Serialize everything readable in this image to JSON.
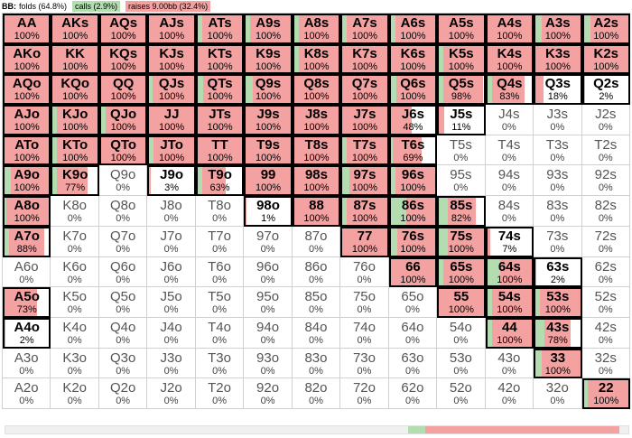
{
  "colors": {
    "fold": "#ffffff",
    "call": "#b3dcb0",
    "raise": "#f4a1a1"
  },
  "header": {
    "title": "BB:",
    "folds_label": "folds (64.8%)",
    "calls_label": "calls (2.9%)",
    "raises_label": "raises 9.00bb (32.4%)"
  },
  "summary": {
    "fold": 0.648,
    "call": 0.029,
    "raise": 0.324
  },
  "grid": [
    [
      {
        "hand": "AA",
        "pct": "100%",
        "call": 0,
        "raise": 1
      },
      {
        "hand": "AKs",
        "pct": "100%",
        "call": 0,
        "raise": 1
      },
      {
        "hand": "AQs",
        "pct": "100%",
        "call": 0,
        "raise": 1
      },
      {
        "hand": "AJs",
        "pct": "100%",
        "call": 0,
        "raise": 1
      },
      {
        "hand": "ATs",
        "pct": "100%",
        "call": 0.1,
        "raise": 0.9
      },
      {
        "hand": "A9s",
        "pct": "100%",
        "call": 0.1,
        "raise": 0.9
      },
      {
        "hand": "A8s",
        "pct": "100%",
        "call": 0.1,
        "raise": 0.9
      },
      {
        "hand": "A7s",
        "pct": "100%",
        "call": 0.1,
        "raise": 0.9
      },
      {
        "hand": "A6s",
        "pct": "100%",
        "call": 0.1,
        "raise": 0.9
      },
      {
        "hand": "A5s",
        "pct": "100%",
        "call": 0,
        "raise": 1
      },
      {
        "hand": "A4s",
        "pct": "100%",
        "call": 0,
        "raise": 1
      },
      {
        "hand": "A3s",
        "pct": "100%",
        "call": 0.15,
        "raise": 0.85
      },
      {
        "hand": "A2s",
        "pct": "100%",
        "call": 0.15,
        "raise": 0.85
      }
    ],
    [
      {
        "hand": "AKo",
        "pct": "100%",
        "call": 0,
        "raise": 1
      },
      {
        "hand": "KK",
        "pct": "100%",
        "call": 0,
        "raise": 1
      },
      {
        "hand": "KQs",
        "pct": "100%",
        "call": 0,
        "raise": 1
      },
      {
        "hand": "KJs",
        "pct": "100%",
        "call": 0,
        "raise": 1
      },
      {
        "hand": "KTs",
        "pct": "100%",
        "call": 0,
        "raise": 1
      },
      {
        "hand": "K9s",
        "pct": "100%",
        "call": 0,
        "raise": 1
      },
      {
        "hand": "K8s",
        "pct": "100%",
        "call": 0.1,
        "raise": 0.9
      },
      {
        "hand": "K7s",
        "pct": "100%",
        "call": 0,
        "raise": 1
      },
      {
        "hand": "K6s",
        "pct": "100%",
        "call": 0,
        "raise": 1
      },
      {
        "hand": "K5s",
        "pct": "100%",
        "call": 0.1,
        "raise": 0.9
      },
      {
        "hand": "K4s",
        "pct": "100%",
        "call": 0,
        "raise": 1
      },
      {
        "hand": "K3s",
        "pct": "100%",
        "call": 0,
        "raise": 1
      },
      {
        "hand": "K2s",
        "pct": "100%",
        "call": 0,
        "raise": 1
      }
    ],
    [
      {
        "hand": "AQo",
        "pct": "100%",
        "call": 0,
        "raise": 1
      },
      {
        "hand": "KQo",
        "pct": "100%",
        "call": 0,
        "raise": 1
      },
      {
        "hand": "QQ",
        "pct": "100%",
        "call": 0,
        "raise": 1
      },
      {
        "hand": "QJs",
        "pct": "100%",
        "call": 0.08,
        "raise": 0.92
      },
      {
        "hand": "QTs",
        "pct": "100%",
        "call": 0.12,
        "raise": 0.88
      },
      {
        "hand": "Q9s",
        "pct": "100%",
        "call": 0.15,
        "raise": 0.85
      },
      {
        "hand": "Q8s",
        "pct": "100%",
        "call": 0,
        "raise": 1
      },
      {
        "hand": "Q7s",
        "pct": "100%",
        "call": 0,
        "raise": 1
      },
      {
        "hand": "Q6s",
        "pct": "100%",
        "call": 0.12,
        "raise": 0.88
      },
      {
        "hand": "Q5s",
        "pct": "98%",
        "call": 0.1,
        "raise": 0.88
      },
      {
        "hand": "Q4s",
        "pct": "83%",
        "call": 0.1,
        "raise": 0.73
      },
      {
        "hand": "Q3s",
        "pct": "18%",
        "call": 0,
        "raise": 0.18
      },
      {
        "hand": "Q2s",
        "pct": "2%",
        "call": 0,
        "raise": 0.02
      }
    ],
    [
      {
        "hand": "AJo",
        "pct": "100%",
        "call": 0,
        "raise": 1
      },
      {
        "hand": "KJo",
        "pct": "100%",
        "call": 0.1,
        "raise": 0.9
      },
      {
        "hand": "QJo",
        "pct": "100%",
        "call": 0.1,
        "raise": 0.9
      },
      {
        "hand": "JJ",
        "pct": "100%",
        "call": 0,
        "raise": 1
      },
      {
        "hand": "JTs",
        "pct": "100%",
        "call": 0,
        "raise": 1
      },
      {
        "hand": "J9s",
        "pct": "100%",
        "call": 0,
        "raise": 1
      },
      {
        "hand": "J8s",
        "pct": "100%",
        "call": 0,
        "raise": 1
      },
      {
        "hand": "J7s",
        "pct": "100%",
        "call": 0,
        "raise": 1
      },
      {
        "hand": "J6s",
        "pct": "48%",
        "call": 0,
        "raise": 0.48
      },
      {
        "hand": "J5s",
        "pct": "11%",
        "call": 0,
        "raise": 0.11
      },
      {
        "hand": "J4s",
        "pct": "0%",
        "call": 0,
        "raise": 0
      },
      {
        "hand": "J3s",
        "pct": "0%",
        "call": 0,
        "raise": 0
      },
      {
        "hand": "J2s",
        "pct": "0%",
        "call": 0,
        "raise": 0
      }
    ],
    [
      {
        "hand": "ATo",
        "pct": "100%",
        "call": 0,
        "raise": 1
      },
      {
        "hand": "KTo",
        "pct": "100%",
        "call": 0.1,
        "raise": 0.9
      },
      {
        "hand": "QTo",
        "pct": "100%",
        "call": 0,
        "raise": 1
      },
      {
        "hand": "JTo",
        "pct": "100%",
        "call": 0.1,
        "raise": 0.9
      },
      {
        "hand": "TT",
        "pct": "100%",
        "call": 0,
        "raise": 1
      },
      {
        "hand": "T9s",
        "pct": "100%",
        "call": 0,
        "raise": 1
      },
      {
        "hand": "T8s",
        "pct": "100%",
        "call": 0,
        "raise": 1
      },
      {
        "hand": "T7s",
        "pct": "100%",
        "call": 0.1,
        "raise": 0.9
      },
      {
        "hand": "T6s",
        "pct": "69%",
        "call": 0.05,
        "raise": 0.64
      },
      {
        "hand": "T5s",
        "pct": "0%",
        "call": 0,
        "raise": 0
      },
      {
        "hand": "T4s",
        "pct": "0%",
        "call": 0,
        "raise": 0
      },
      {
        "hand": "T3s",
        "pct": "0%",
        "call": 0,
        "raise": 0
      },
      {
        "hand": "T2s",
        "pct": "0%",
        "call": 0,
        "raise": 0
      }
    ],
    [
      {
        "hand": "A9o",
        "pct": "100%",
        "call": 0.15,
        "raise": 0.85
      },
      {
        "hand": "K9o",
        "pct": "77%",
        "call": 0.1,
        "raise": 0.67
      },
      {
        "hand": "Q9o",
        "pct": "0%",
        "call": 0,
        "raise": 0
      },
      {
        "hand": "J9o",
        "pct": "3%",
        "call": 0,
        "raise": 0.03
      },
      {
        "hand": "T9o",
        "pct": "63%",
        "call": 0.1,
        "raise": 0.53
      },
      {
        "hand": "99",
        "pct": "100%",
        "call": 0,
        "raise": 1
      },
      {
        "hand": "98s",
        "pct": "100%",
        "call": 0,
        "raise": 1
      },
      {
        "hand": "97s",
        "pct": "100%",
        "call": 0.15,
        "raise": 0.85
      },
      {
        "hand": "96s",
        "pct": "100%",
        "call": 0.1,
        "raise": 0.9
      },
      {
        "hand": "95s",
        "pct": "0%",
        "call": 0,
        "raise": 0
      },
      {
        "hand": "94s",
        "pct": "0%",
        "call": 0,
        "raise": 0
      },
      {
        "hand": "93s",
        "pct": "0%",
        "call": 0,
        "raise": 0
      },
      {
        "hand": "92s",
        "pct": "0%",
        "call": 0,
        "raise": 0
      }
    ],
    [
      {
        "hand": "A8o",
        "pct": "100%",
        "call": 0.05,
        "raise": 0.95
      },
      {
        "hand": "K8o",
        "pct": "0%",
        "call": 0,
        "raise": 0
      },
      {
        "hand": "Q8o",
        "pct": "0%",
        "call": 0,
        "raise": 0
      },
      {
        "hand": "J8o",
        "pct": "0%",
        "call": 0,
        "raise": 0
      },
      {
        "hand": "T8o",
        "pct": "0%",
        "call": 0,
        "raise": 0
      },
      {
        "hand": "98o",
        "pct": "1%",
        "call": 0,
        "raise": 0.01
      },
      {
        "hand": "88",
        "pct": "100%",
        "call": 0,
        "raise": 1
      },
      {
        "hand": "87s",
        "pct": "100%",
        "call": 0.1,
        "raise": 0.9
      },
      {
        "hand": "86s",
        "pct": "100%",
        "call": 0.35,
        "raise": 0.65
      },
      {
        "hand": "85s",
        "pct": "82%",
        "call": 0.2,
        "raise": 0.62
      },
      {
        "hand": "84s",
        "pct": "0%",
        "call": 0,
        "raise": 0
      },
      {
        "hand": "83s",
        "pct": "0%",
        "call": 0,
        "raise": 0
      },
      {
        "hand": "82s",
        "pct": "0%",
        "call": 0,
        "raise": 0
      }
    ],
    [
      {
        "hand": "A7o",
        "pct": "88%",
        "call": 0.1,
        "raise": 0.78
      },
      {
        "hand": "K7o",
        "pct": "0%",
        "call": 0,
        "raise": 0
      },
      {
        "hand": "Q7o",
        "pct": "0%",
        "call": 0,
        "raise": 0
      },
      {
        "hand": "J7o",
        "pct": "0%",
        "call": 0,
        "raise": 0
      },
      {
        "hand": "T7o",
        "pct": "0%",
        "call": 0,
        "raise": 0
      },
      {
        "hand": "97o",
        "pct": "0%",
        "call": 0,
        "raise": 0
      },
      {
        "hand": "87o",
        "pct": "0%",
        "call": 0,
        "raise": 0
      },
      {
        "hand": "77",
        "pct": "100%",
        "call": 0,
        "raise": 1
      },
      {
        "hand": "76s",
        "pct": "100%",
        "call": 0.15,
        "raise": 0.85
      },
      {
        "hand": "75s",
        "pct": "100%",
        "call": 0.2,
        "raise": 0.8
      },
      {
        "hand": "74s",
        "pct": "7%",
        "call": 0,
        "raise": 0.07
      },
      {
        "hand": "73s",
        "pct": "0%",
        "call": 0,
        "raise": 0
      },
      {
        "hand": "72s",
        "pct": "0%",
        "call": 0,
        "raise": 0
      }
    ],
    [
      {
        "hand": "A6o",
        "pct": "0%",
        "call": 0,
        "raise": 0
      },
      {
        "hand": "K6o",
        "pct": "0%",
        "call": 0,
        "raise": 0
      },
      {
        "hand": "Q6o",
        "pct": "0%",
        "call": 0,
        "raise": 0
      },
      {
        "hand": "J6o",
        "pct": "0%",
        "call": 0,
        "raise": 0
      },
      {
        "hand": "T6o",
        "pct": "0%",
        "call": 0,
        "raise": 0
      },
      {
        "hand": "96o",
        "pct": "0%",
        "call": 0,
        "raise": 0
      },
      {
        "hand": "86o",
        "pct": "0%",
        "call": 0,
        "raise": 0
      },
      {
        "hand": "76o",
        "pct": "0%",
        "call": 0,
        "raise": 0
      },
      {
        "hand": "66",
        "pct": "100%",
        "call": 0,
        "raise": 1
      },
      {
        "hand": "65s",
        "pct": "100%",
        "call": 0.1,
        "raise": 0.9
      },
      {
        "hand": "64s",
        "pct": "100%",
        "call": 0.3,
        "raise": 0.7
      },
      {
        "hand": "63s",
        "pct": "2%",
        "call": 0,
        "raise": 0.02
      },
      {
        "hand": "62s",
        "pct": "0%",
        "call": 0,
        "raise": 0
      }
    ],
    [
      {
        "hand": "A5o",
        "pct": "73%",
        "call": 0,
        "raise": 0.73
      },
      {
        "hand": "K5o",
        "pct": "0%",
        "call": 0,
        "raise": 0
      },
      {
        "hand": "Q5o",
        "pct": "0%",
        "call": 0,
        "raise": 0
      },
      {
        "hand": "J5o",
        "pct": "0%",
        "call": 0,
        "raise": 0
      },
      {
        "hand": "T5o",
        "pct": "0%",
        "call": 0,
        "raise": 0
      },
      {
        "hand": "95o",
        "pct": "0%",
        "call": 0,
        "raise": 0
      },
      {
        "hand": "85o",
        "pct": "0%",
        "call": 0,
        "raise": 0
      },
      {
        "hand": "75o",
        "pct": "0%",
        "call": 0,
        "raise": 0
      },
      {
        "hand": "65o",
        "pct": "0%",
        "call": 0,
        "raise": 0
      },
      {
        "hand": "55",
        "pct": "100%",
        "call": 0,
        "raise": 1
      },
      {
        "hand": "54s",
        "pct": "100%",
        "call": 0.1,
        "raise": 0.9
      },
      {
        "hand": "53s",
        "pct": "100%",
        "call": 0.1,
        "raise": 0.9
      },
      {
        "hand": "52s",
        "pct": "0%",
        "call": 0,
        "raise": 0
      }
    ],
    [
      {
        "hand": "A4o",
        "pct": "2%",
        "call": 0,
        "raise": 0.02
      },
      {
        "hand": "K4o",
        "pct": "0%",
        "call": 0,
        "raise": 0
      },
      {
        "hand": "Q4o",
        "pct": "0%",
        "call": 0,
        "raise": 0
      },
      {
        "hand": "J4o",
        "pct": "0%",
        "call": 0,
        "raise": 0
      },
      {
        "hand": "T4o",
        "pct": "0%",
        "call": 0,
        "raise": 0
      },
      {
        "hand": "94o",
        "pct": "0%",
        "call": 0,
        "raise": 0
      },
      {
        "hand": "84o",
        "pct": "0%",
        "call": 0,
        "raise": 0
      },
      {
        "hand": "74o",
        "pct": "0%",
        "call": 0,
        "raise": 0
      },
      {
        "hand": "64o",
        "pct": "0%",
        "call": 0,
        "raise": 0
      },
      {
        "hand": "54o",
        "pct": "0%",
        "call": 0,
        "raise": 0
      },
      {
        "hand": "44",
        "pct": "100%",
        "call": 0.1,
        "raise": 0.9
      },
      {
        "hand": "43s",
        "pct": "78%",
        "call": 0.2,
        "raise": 0.58
      },
      {
        "hand": "42s",
        "pct": "0%",
        "call": 0,
        "raise": 0
      }
    ],
    [
      {
        "hand": "A3o",
        "pct": "0%",
        "call": 0,
        "raise": 0
      },
      {
        "hand": "K3o",
        "pct": "0%",
        "call": 0,
        "raise": 0
      },
      {
        "hand": "Q3o",
        "pct": "0%",
        "call": 0,
        "raise": 0
      },
      {
        "hand": "J3o",
        "pct": "0%",
        "call": 0,
        "raise": 0
      },
      {
        "hand": "T3o",
        "pct": "0%",
        "call": 0,
        "raise": 0
      },
      {
        "hand": "93o",
        "pct": "0%",
        "call": 0,
        "raise": 0
      },
      {
        "hand": "83o",
        "pct": "0%",
        "call": 0,
        "raise": 0
      },
      {
        "hand": "73o",
        "pct": "0%",
        "call": 0,
        "raise": 0
      },
      {
        "hand": "63o",
        "pct": "0%",
        "call": 0,
        "raise": 0
      },
      {
        "hand": "53o",
        "pct": "0%",
        "call": 0,
        "raise": 0
      },
      {
        "hand": "43o",
        "pct": "0%",
        "call": 0,
        "raise": 0
      },
      {
        "hand": "33",
        "pct": "100%",
        "call": 0.15,
        "raise": 0.85
      },
      {
        "hand": "32s",
        "pct": "0%",
        "call": 0,
        "raise": 0
      }
    ],
    [
      {
        "hand": "A2o",
        "pct": "0%",
        "call": 0,
        "raise": 0
      },
      {
        "hand": "K2o",
        "pct": "0%",
        "call": 0,
        "raise": 0
      },
      {
        "hand": "Q2o",
        "pct": "0%",
        "call": 0,
        "raise": 0
      },
      {
        "hand": "J2o",
        "pct": "0%",
        "call": 0,
        "raise": 0
      },
      {
        "hand": "T2o",
        "pct": "0%",
        "call": 0,
        "raise": 0
      },
      {
        "hand": "92o",
        "pct": "0%",
        "call": 0,
        "raise": 0
      },
      {
        "hand": "82o",
        "pct": "0%",
        "call": 0,
        "raise": 0
      },
      {
        "hand": "72o",
        "pct": "0%",
        "call": 0,
        "raise": 0
      },
      {
        "hand": "62o",
        "pct": "0%",
        "call": 0,
        "raise": 0
      },
      {
        "hand": "52o",
        "pct": "0%",
        "call": 0,
        "raise": 0
      },
      {
        "hand": "42o",
        "pct": "0%",
        "call": 0,
        "raise": 0
      },
      {
        "hand": "32o",
        "pct": "0%",
        "call": 0,
        "raise": 0
      },
      {
        "hand": "22",
        "pct": "100%",
        "call": 0.1,
        "raise": 0.9
      }
    ]
  ]
}
